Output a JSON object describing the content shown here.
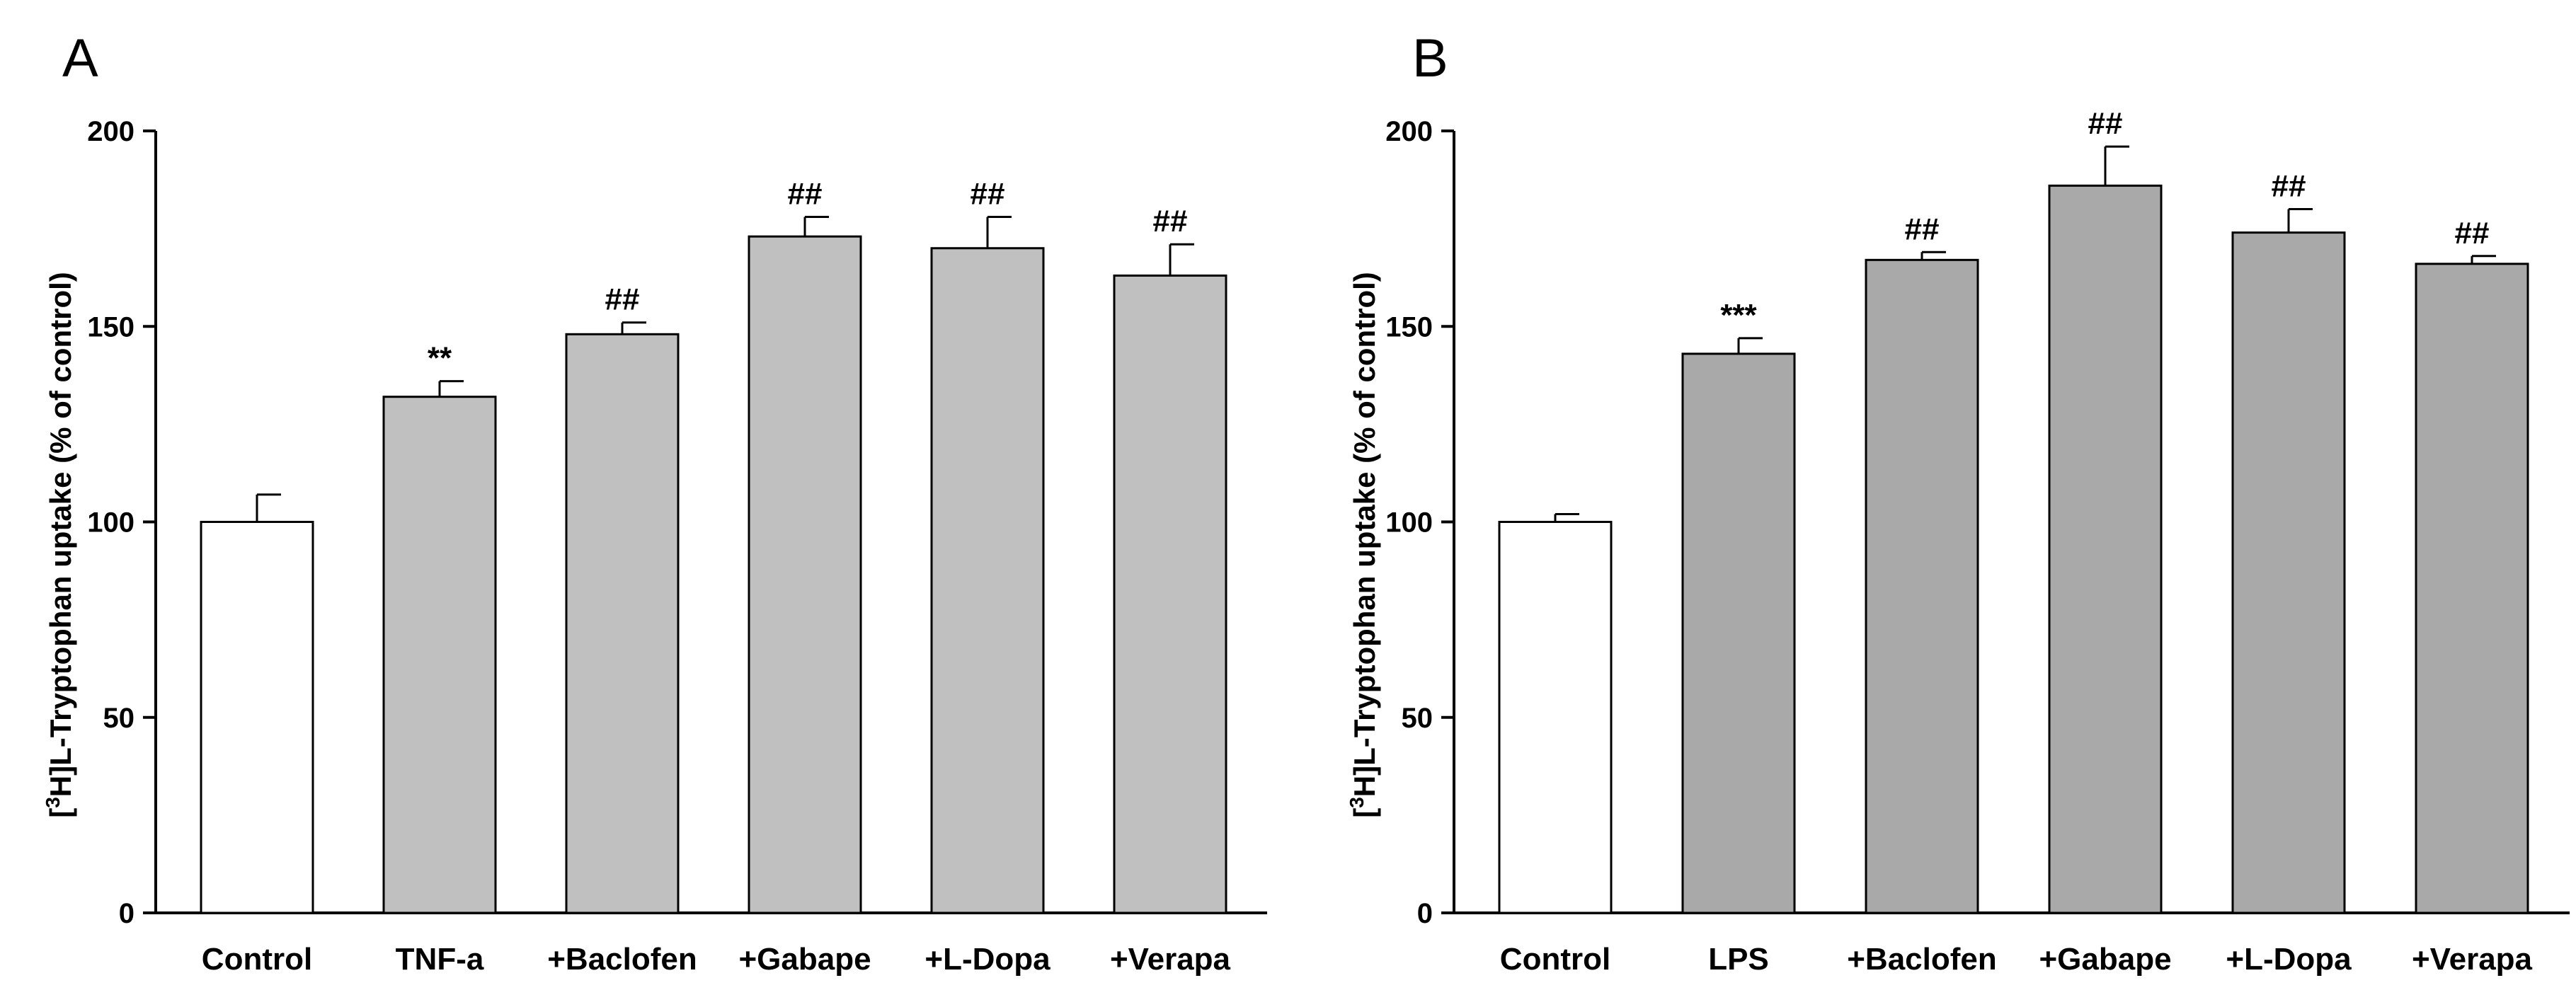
{
  "chart_data": [
    {
      "type": "bar",
      "panel_label": "A",
      "title": "",
      "xlabel": "",
      "ylabel_prefix": "[",
      "ylabel_sup": "3",
      "ylabel_rest": "H]L-Tryptophan uptake (% of control)",
      "ylim": [
        0,
        200
      ],
      "yticks": [
        0,
        50,
        100,
        150,
        200
      ],
      "categories": [
        "Control",
        "TNF-a",
        "+Baclofen",
        "+Gabape",
        "+L-Dopa",
        "+Verapa"
      ],
      "values": [
        100,
        132,
        148,
        173,
        170,
        163
      ],
      "errors": [
        7,
        4,
        3,
        5,
        8,
        8
      ],
      "annotations": [
        "",
        "**",
        "##",
        "##",
        "##",
        "##"
      ],
      "bar_colors": [
        "#ffffff",
        "#c0c0c0",
        "#c0c0c0",
        "#c0c0c0",
        "#c0c0c0",
        "#c0c0c0"
      ]
    },
    {
      "type": "bar",
      "panel_label": "B",
      "title": "",
      "xlabel": "",
      "ylabel_prefix": "[",
      "ylabel_sup": "3",
      "ylabel_rest": "H]L-Tryptophan uptake (% of control)",
      "ylim": [
        0,
        200
      ],
      "yticks": [
        0,
        50,
        100,
        150,
        200
      ],
      "categories": [
        "Control",
        "LPS",
        "+Baclofen",
        "+Gabape",
        "+L-Dopa",
        "+Verapa"
      ],
      "values": [
        100,
        143,
        167,
        186,
        174,
        166
      ],
      "errors": [
        2,
        4,
        2,
        10,
        6,
        2
      ],
      "annotations": [
        "",
        "***",
        "##",
        "##",
        "##",
        "##"
      ],
      "bar_colors": [
        "#ffffff",
        "#a9a9a9",
        "#a9a9a9",
        "#a9a9a9",
        "#a9a9a9",
        "#a9a9a9"
      ]
    }
  ]
}
